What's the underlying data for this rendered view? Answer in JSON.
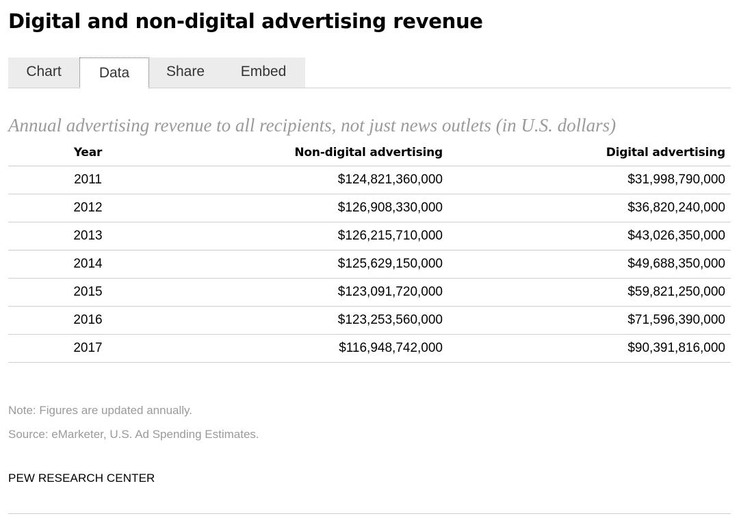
{
  "title": "Digital and non-digital advertising revenue",
  "tabs": [
    {
      "label": "Chart",
      "active": false
    },
    {
      "label": "Data",
      "active": true
    },
    {
      "label": "Share",
      "active": false
    },
    {
      "label": "Embed",
      "active": false
    }
  ],
  "subtitle": "Annual advertising revenue to all recipients, not just news outlets (in U.S. dollars)",
  "table": {
    "headers": [
      "Year",
      "Non-digital advertising",
      "Digital advertising"
    ],
    "rows": [
      [
        "2011",
        "$124,821,360,000",
        "$31,998,790,000"
      ],
      [
        "2012",
        "$126,908,330,000",
        "$36,820,240,000"
      ],
      [
        "2013",
        "$126,215,710,000",
        "$43,026,350,000"
      ],
      [
        "2014",
        "$125,629,150,000",
        "$49,688,350,000"
      ],
      [
        "2015",
        "$123,091,720,000",
        "$59,821,250,000"
      ],
      [
        "2016",
        "$123,253,560,000",
        "$71,596,390,000"
      ],
      [
        "2017",
        "$116,948,742,000",
        "$90,391,816,000"
      ]
    ]
  },
  "note": "Note: Figures are updated annually.",
  "source": "Source: eMarketer, U.S. Ad Spending Estimates.",
  "brand": "PEW RESEARCH CENTER",
  "colors": {
    "muted_text": "#9a9a9a",
    "tab_background": "#ececec",
    "rule": "#cfcfcf"
  }
}
